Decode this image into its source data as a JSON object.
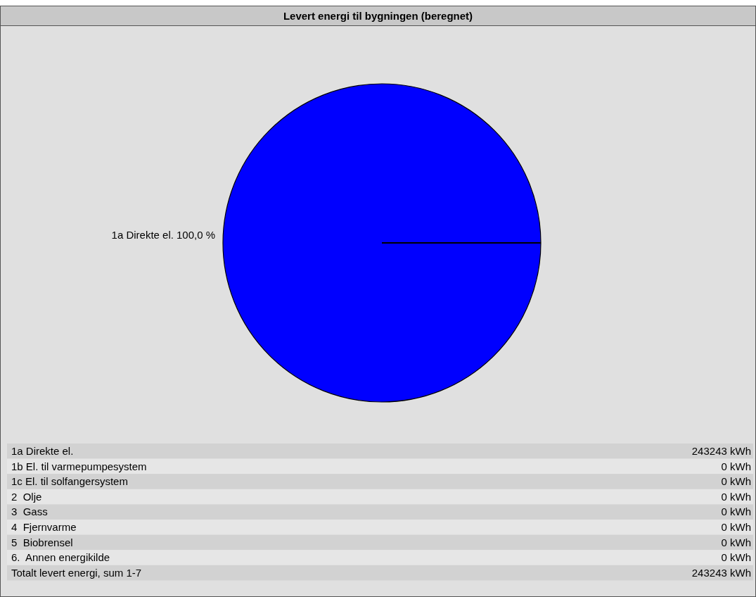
{
  "chart_data": {
    "type": "pie",
    "title": "Levert energi til bygningen (beregnet)",
    "categories": [
      "1a Direkte el.",
      "1b El. til varmepumpesystem",
      "1c El. til solfangersystem",
      "2  Olje",
      "3  Gass",
      "4  Fjernvarme",
      "5  Biobrensel",
      "6.  Annen energikilde"
    ],
    "values": [
      100,
      0,
      0,
      0,
      0,
      0,
      0,
      0
    ],
    "colors": [
      "#0000ff",
      null,
      null,
      null,
      null,
      null,
      null,
      null
    ],
    "value_labels": [
      "100,0 %",
      null,
      null,
      null,
      null,
      null,
      null,
      null
    ],
    "annotations": [
      "243243 kWh",
      "0 kWh",
      "0 kWh",
      "0 kWh",
      "0 kWh",
      "0 kWh",
      "0 kWh",
      "0 kWh",
      "Totalt levert energi, sum 1-7",
      "243243 kWh"
    ],
    "legend": false
  }
}
